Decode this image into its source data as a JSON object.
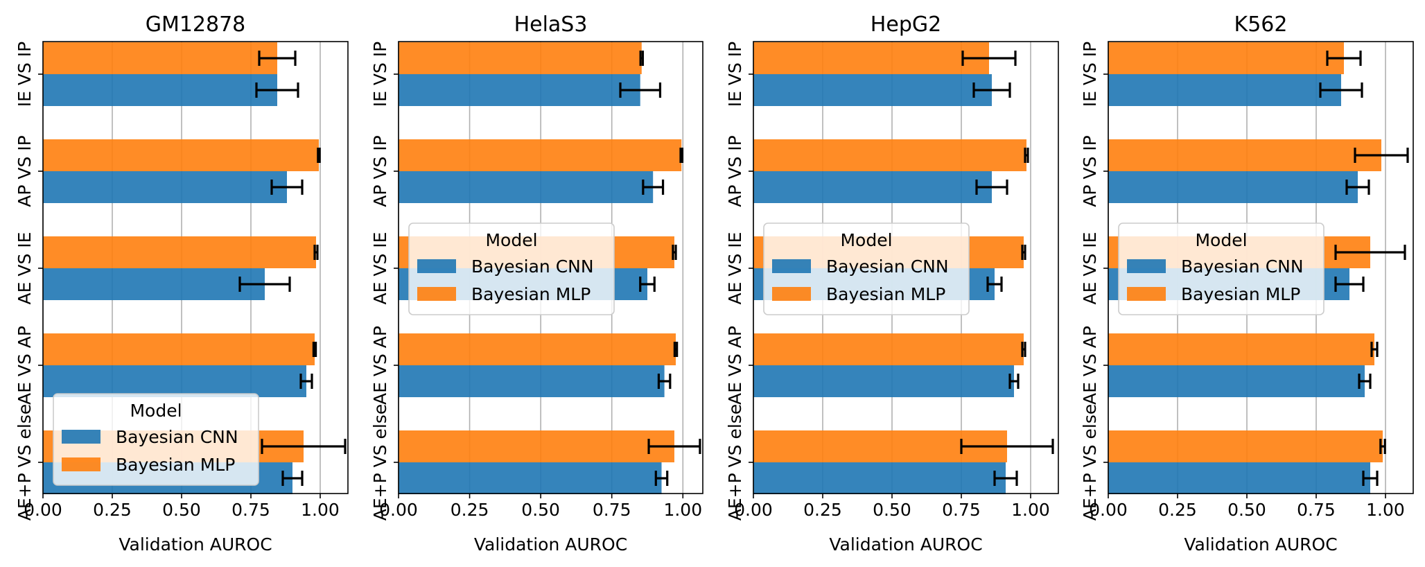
{
  "chart_data": [
    {
      "type": "bar",
      "orientation": "horizontal",
      "title": "GM12878",
      "xlabel": "Validation AUROC",
      "ylabel": "",
      "xlim": [
        0,
        1.1
      ],
      "xticks": [
        "0.00",
        "0.25",
        "0.50",
        "0.75",
        "1.00"
      ],
      "categories": [
        "IE VS IP",
        "AP VS IP",
        "AE VS IE",
        "AE VS AP",
        "AE+P VS else"
      ],
      "grid": "x",
      "legend": {
        "title": "Model",
        "position": "lower-left"
      },
      "series": [
        {
          "name": "Bayesian CNN",
          "color": "#1f77b4",
          "values": [
            0.845,
            0.88,
            0.8,
            0.95,
            0.9
          ],
          "errors": [
            0.075,
            0.055,
            0.09,
            0.02,
            0.035
          ]
        },
        {
          "name": "Bayesian MLP",
          "color": "#ff7f0e",
          "values": [
            0.845,
            0.995,
            0.985,
            0.98,
            0.94
          ],
          "errors": [
            0.065,
            0.003,
            0.005,
            0.004,
            0.15
          ]
        }
      ]
    },
    {
      "type": "bar",
      "orientation": "horizontal",
      "title": "HelaS3",
      "xlabel": "Validation AUROC",
      "ylabel": "",
      "xlim": [
        0,
        1.07
      ],
      "xticks": [
        "0.00",
        "0.25",
        "0.50",
        "0.75",
        "1.00"
      ],
      "categories": [
        "IE VS IP",
        "AP VS IP",
        "AE VS IE",
        "AE VS AP",
        "AE+P VS else"
      ],
      "grid": "x",
      "legend": {
        "title": "Model",
        "position": "center-left"
      },
      "series": [
        {
          "name": "Bayesian CNN",
          "color": "#1f77b4",
          "values": [
            0.85,
            0.895,
            0.875,
            0.935,
            0.925
          ],
          "errors": [
            0.07,
            0.035,
            0.025,
            0.02,
            0.02
          ]
        },
        {
          "name": "Bayesian MLP",
          "color": "#ff7f0e",
          "values": [
            0.855,
            0.995,
            0.97,
            0.975,
            0.97
          ],
          "errors": [
            0.004,
            0.003,
            0.005,
            0.004,
            0.09
          ]
        }
      ]
    },
    {
      "type": "bar",
      "orientation": "horizontal",
      "title": "HepG2",
      "xlabel": "Validation AUROC",
      "ylabel": "",
      "xlim": [
        0,
        1.1
      ],
      "xticks": [
        "0.00",
        "0.25",
        "0.50",
        "0.75",
        "1.00"
      ],
      "categories": [
        "IE VS IP",
        "AP VS IP",
        "AE VS IE",
        "AE VS AP",
        "AE+P VS else"
      ],
      "grid": "x",
      "legend": {
        "title": "Model",
        "position": "center-left"
      },
      "series": [
        {
          "name": "Bayesian CNN",
          "color": "#1f77b4",
          "values": [
            0.86,
            0.86,
            0.87,
            0.94,
            0.91
          ],
          "errors": [
            0.065,
            0.055,
            0.025,
            0.015,
            0.04
          ]
        },
        {
          "name": "Bayesian MLP",
          "color": "#ff7f0e",
          "values": [
            0.85,
            0.985,
            0.975,
            0.975,
            0.915
          ],
          "errors": [
            0.095,
            0.005,
            0.005,
            0.005,
            0.165
          ]
        }
      ]
    },
    {
      "type": "bar",
      "orientation": "horizontal",
      "title": "K562",
      "xlabel": "Validation AUROC",
      "ylabel": "",
      "xlim": [
        0,
        1.1
      ],
      "xticks": [
        "0.00",
        "0.25",
        "0.50",
        "0.75",
        "1.00"
      ],
      "categories": [
        "IE VS IP",
        "AP VS IP",
        "AE VS IE",
        "AE VS AP",
        "AE+P VS else"
      ],
      "grid": "x",
      "legend": {
        "title": "Model",
        "position": "center-left"
      },
      "series": [
        {
          "name": "Bayesian CNN",
          "color": "#1f77b4",
          "values": [
            0.84,
            0.9,
            0.87,
            0.925,
            0.945
          ],
          "errors": [
            0.075,
            0.04,
            0.05,
            0.02,
            0.025
          ]
        },
        {
          "name": "Bayesian MLP",
          "color": "#ff7f0e",
          "values": [
            0.85,
            0.985,
            0.945,
            0.96,
            0.99
          ],
          "errors": [
            0.06,
            0.095,
            0.125,
            0.01,
            0.008
          ]
        }
      ]
    }
  ]
}
